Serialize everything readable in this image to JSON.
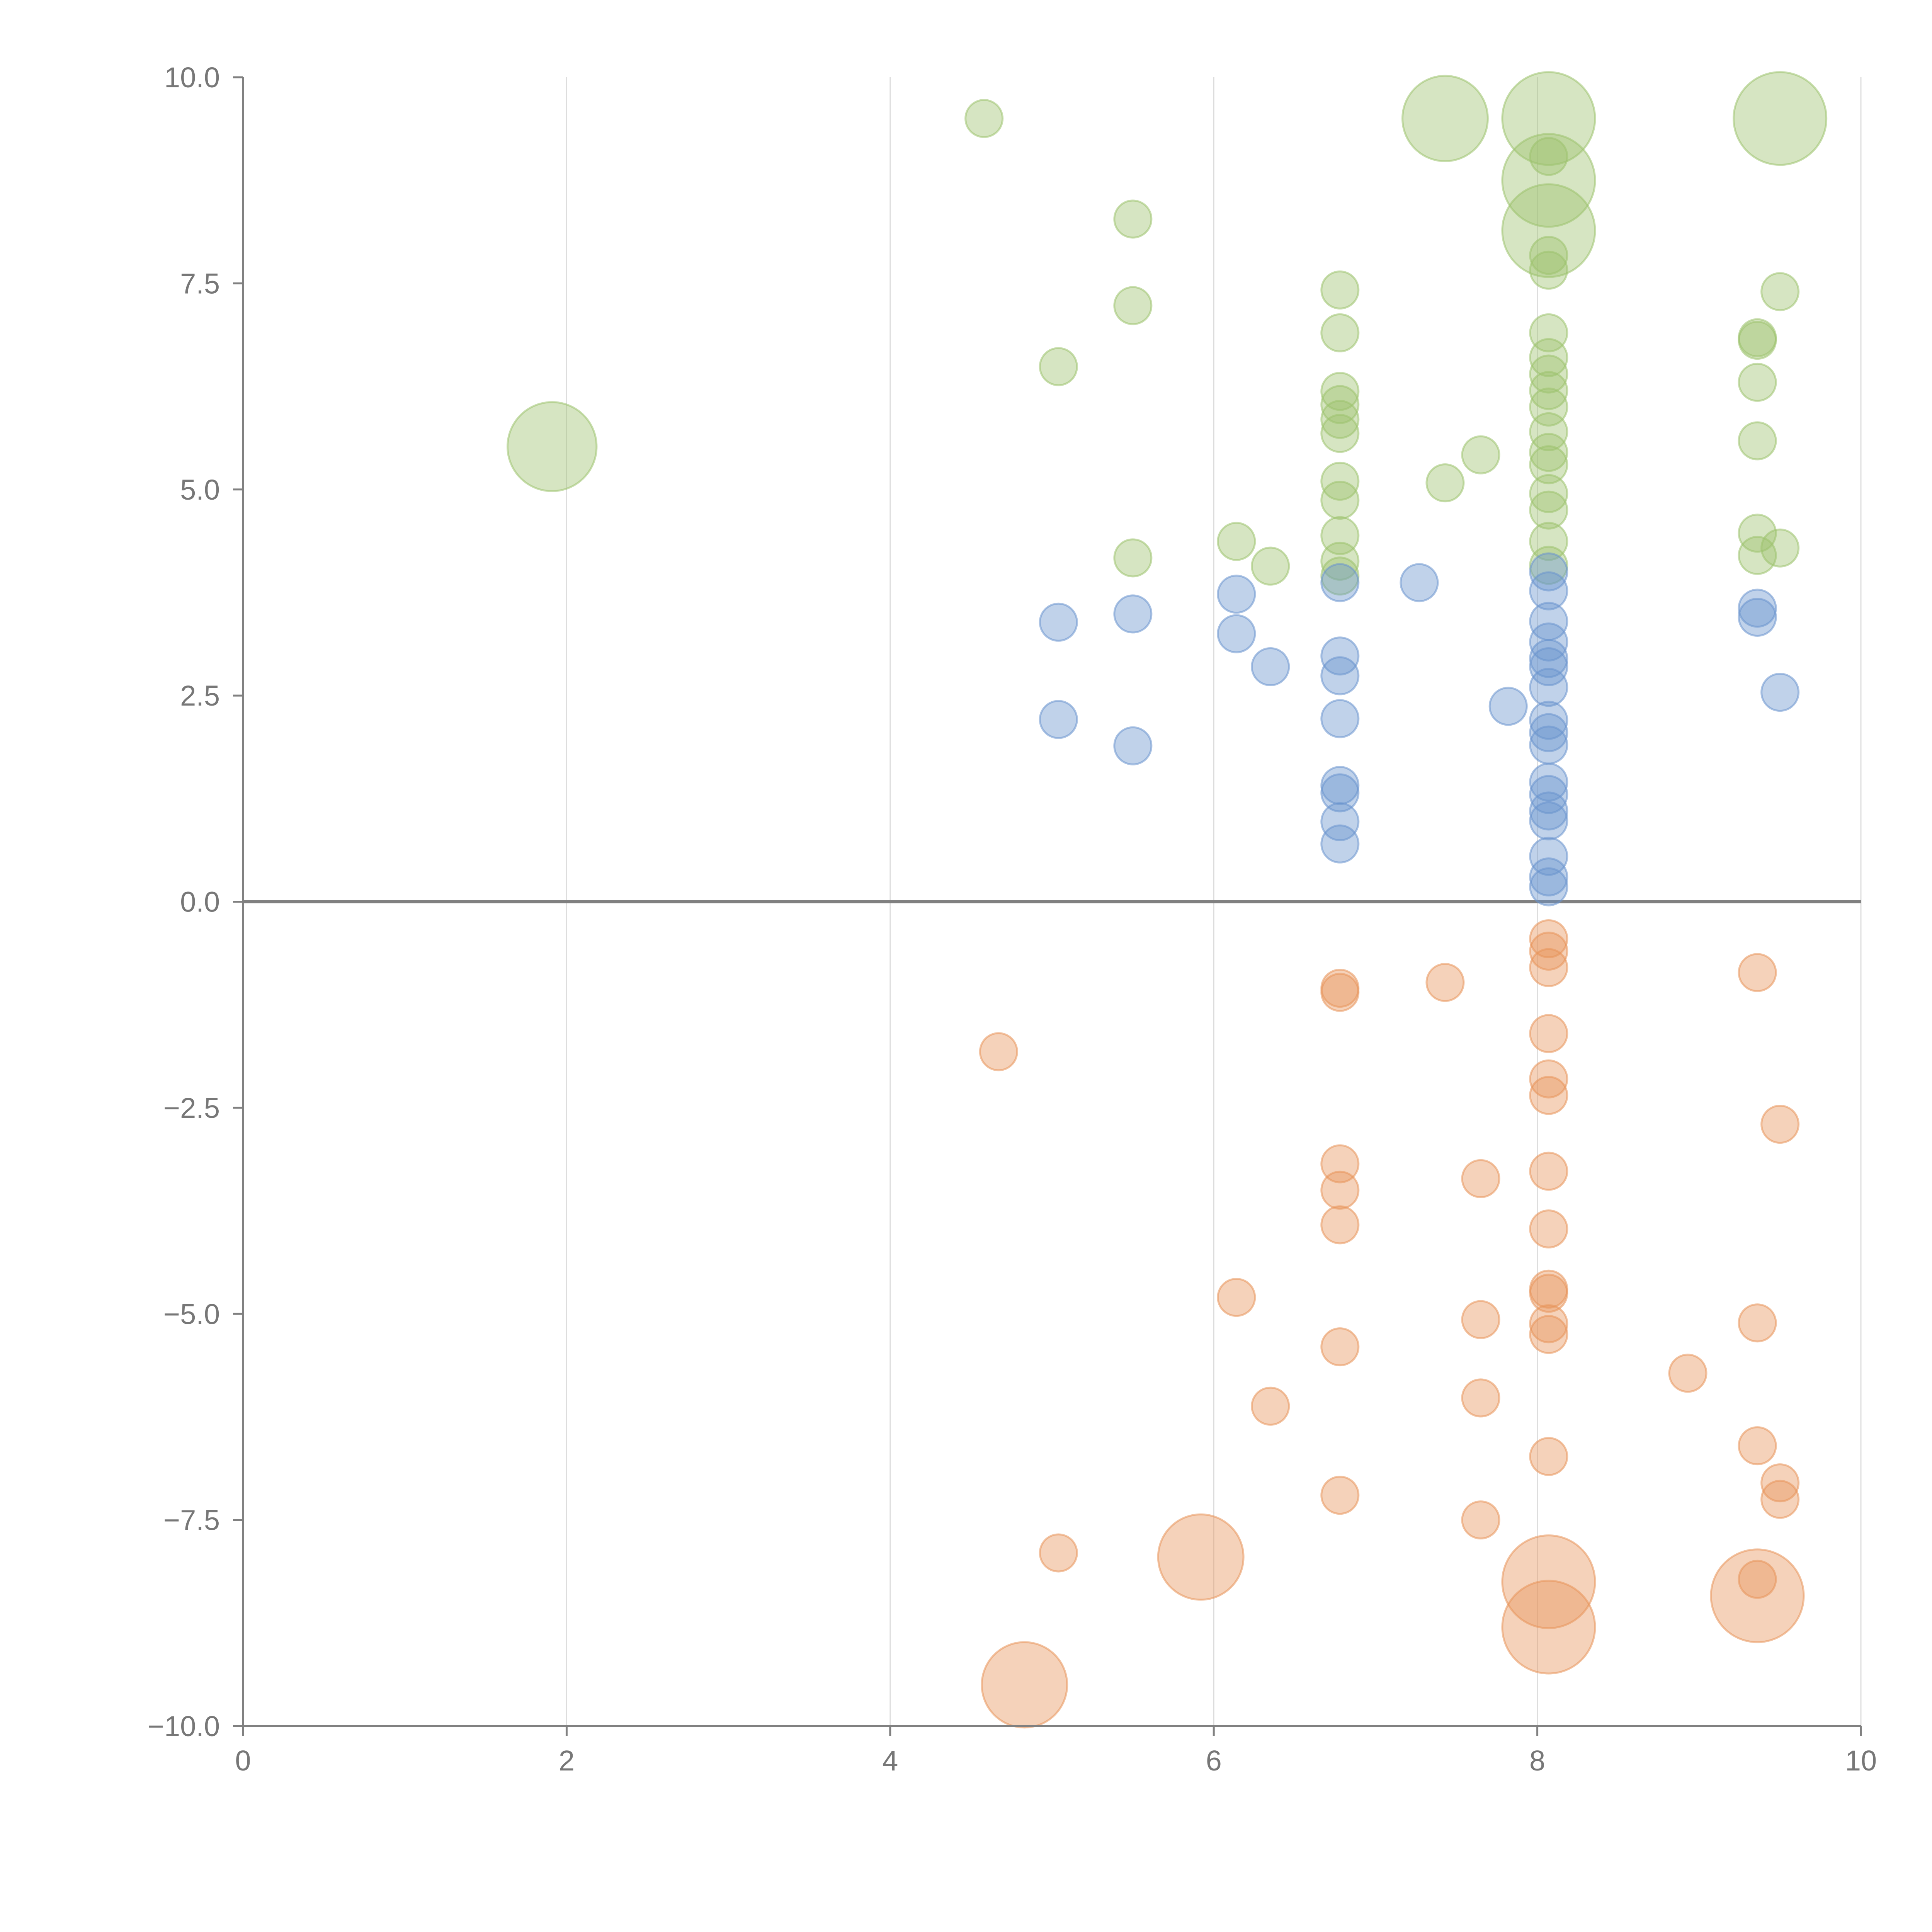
{
  "chart_data": {
    "type": "scatter",
    "title": "",
    "xlabel": "",
    "ylabel": "",
    "xlim": [
      0,
      10
    ],
    "ylim": [
      -10,
      10
    ],
    "grid": "vertical",
    "legend": "none",
    "x_ticks": [
      "0",
      "2",
      "4",
      "6",
      "8",
      "10"
    ],
    "x_tick_values": [
      0,
      2,
      4,
      6,
      8,
      10
    ],
    "y_ticks": [
      "10.0",
      "7.5",
      "5.0",
      "2.5",
      "0.0",
      "−2.5",
      "−5.0",
      "−7.5",
      "−10.0"
    ],
    "y_tick_values": [
      10,
      7.5,
      5,
      2.5,
      0,
      -2.5,
      -5,
      -7.5,
      -10
    ],
    "colors": {
      "green": "#9dc26d",
      "blue": "#6a94cd",
      "orange": "#e8945a"
    },
    "series": [
      {
        "name": "green",
        "color": "#9dc26d",
        "points": [
          [
            4.58,
            9.5,
            1
          ],
          [
            5.5,
            8.28,
            1
          ],
          [
            5.5,
            7.23,
            1
          ],
          [
            5.04,
            6.49,
            1
          ],
          [
            5.5,
            4.17,
            1
          ],
          [
            1.91,
            5.52,
            2.4
          ],
          [
            6.14,
            4.37,
            1
          ],
          [
            6.35,
            4.07,
            1
          ],
          [
            6.78,
            7.42,
            1
          ],
          [
            6.78,
            6.9,
            1
          ],
          [
            6.78,
            6.19,
            1
          ],
          [
            6.78,
            6.03,
            1
          ],
          [
            6.78,
            5.85,
            1
          ],
          [
            6.78,
            5.68,
            1
          ],
          [
            6.78,
            5.1,
            1
          ],
          [
            6.78,
            4.87,
            1
          ],
          [
            6.78,
            4.44,
            1
          ],
          [
            6.78,
            4.13,
            1
          ],
          [
            6.78,
            3.95,
            1
          ],
          [
            7.43,
            9.5,
            2.3
          ],
          [
            7.43,
            5.08,
            1
          ],
          [
            7.65,
            5.42,
            1
          ],
          [
            8.07,
            9.5,
            2.5
          ],
          [
            8.07,
            9.04,
            1
          ],
          [
            8.07,
            8.75,
            2.5
          ],
          [
            8.07,
            8.14,
            2.5
          ],
          [
            8.07,
            7.84,
            1
          ],
          [
            8.07,
            7.66,
            1
          ],
          [
            8.07,
            6.9,
            1
          ],
          [
            8.07,
            6.6,
            1
          ],
          [
            8.07,
            6.4,
            1
          ],
          [
            8.07,
            6.2,
            1
          ],
          [
            8.07,
            6.0,
            1
          ],
          [
            8.07,
            5.7,
            1
          ],
          [
            8.07,
            5.45,
            1
          ],
          [
            8.07,
            5.3,
            1
          ],
          [
            8.07,
            4.95,
            1
          ],
          [
            8.07,
            4.75,
            1
          ],
          [
            8.07,
            4.37,
            1
          ],
          [
            8.07,
            4.08,
            1
          ],
          [
            9.36,
            6.84,
            1
          ],
          [
            9.36,
            6.81,
            1
          ],
          [
            9.36,
            6.3,
            1
          ],
          [
            9.36,
            5.59,
            1
          ],
          [
            9.36,
            4.47,
            1
          ],
          [
            9.36,
            4.2,
            1
          ],
          [
            9.5,
            9.5,
            2.5
          ],
          [
            9.5,
            7.4,
            1
          ],
          [
            9.5,
            4.29,
            1
          ]
        ]
      },
      {
        "name": "blue",
        "color": "#6a94cd",
        "points": [
          [
            5.04,
            3.39,
            1
          ],
          [
            5.04,
            2.21,
            1
          ],
          [
            5.5,
            3.49,
            1
          ],
          [
            5.5,
            1.89,
            1
          ],
          [
            6.14,
            3.73,
            1
          ],
          [
            6.14,
            3.25,
            1
          ],
          [
            6.35,
            2.85,
            1
          ],
          [
            6.78,
            3.87,
            1
          ],
          [
            6.78,
            2.98,
            1
          ],
          [
            6.78,
            2.74,
            1
          ],
          [
            6.78,
            2.22,
            1
          ],
          [
            6.78,
            1.41,
            1
          ],
          [
            6.78,
            1.32,
            1
          ],
          [
            6.78,
            0.97,
            1
          ],
          [
            6.78,
            0.7,
            1
          ],
          [
            7.27,
            3.87,
            1
          ],
          [
            7.82,
            2.37,
            1
          ],
          [
            8.07,
            4.0,
            1
          ],
          [
            8.07,
            3.77,
            1
          ],
          [
            8.07,
            3.4,
            1
          ],
          [
            8.07,
            3.15,
            1
          ],
          [
            8.07,
            2.95,
            1
          ],
          [
            8.07,
            2.85,
            1
          ],
          [
            8.07,
            2.6,
            1
          ],
          [
            8.07,
            2.2,
            1
          ],
          [
            8.07,
            2.05,
            1
          ],
          [
            8.07,
            1.9,
            1
          ],
          [
            8.07,
            1.45,
            1
          ],
          [
            8.07,
            1.3,
            1
          ],
          [
            8.07,
            1.1,
            1
          ],
          [
            8.07,
            0.98,
            1
          ],
          [
            8.07,
            0.55,
            1
          ],
          [
            8.07,
            0.3,
            1
          ],
          [
            8.07,
            0.18,
            1
          ],
          [
            9.36,
            3.56,
            1
          ],
          [
            9.36,
            3.45,
            1
          ],
          [
            9.5,
            2.54,
            1
          ]
        ]
      },
      {
        "name": "orange",
        "color": "#e8945a",
        "points": [
          [
            4.67,
            -1.82,
            1
          ],
          [
            4.83,
            -9.5,
            2.3
          ],
          [
            5.04,
            -7.9,
            1
          ],
          [
            5.92,
            -7.95,
            2.3
          ],
          [
            6.14,
            -4.8,
            1
          ],
          [
            6.35,
            -6.12,
            1
          ],
          [
            6.78,
            -1.05,
            1
          ],
          [
            6.78,
            -1.1,
            1
          ],
          [
            6.78,
            -3.18,
            1
          ],
          [
            6.78,
            -3.5,
            1
          ],
          [
            6.78,
            -3.92,
            1
          ],
          [
            6.78,
            -5.4,
            1
          ],
          [
            6.78,
            -7.2,
            1
          ],
          [
            7.43,
            -0.98,
            1
          ],
          [
            7.65,
            -3.36,
            1
          ],
          [
            7.65,
            -5.07,
            1
          ],
          [
            7.65,
            -6.02,
            1
          ],
          [
            7.65,
            -7.5,
            1
          ],
          [
            8.07,
            -0.45,
            1
          ],
          [
            8.07,
            -0.6,
            1
          ],
          [
            8.07,
            -0.8,
            1
          ],
          [
            8.07,
            -1.6,
            1
          ],
          [
            8.07,
            -2.15,
            1
          ],
          [
            8.07,
            -2.35,
            1
          ],
          [
            8.07,
            -3.27,
            1
          ],
          [
            8.07,
            -3.97,
            1
          ],
          [
            8.07,
            -4.7,
            1
          ],
          [
            8.07,
            -4.75,
            1
          ],
          [
            8.07,
            -5.12,
            1
          ],
          [
            8.07,
            -5.25,
            1
          ],
          [
            8.07,
            -6.73,
            1
          ],
          [
            8.07,
            -8.25,
            2.5
          ],
          [
            8.07,
            -8.8,
            2.5
          ],
          [
            8.93,
            -5.72,
            1
          ],
          [
            9.36,
            -0.86,
            1
          ],
          [
            9.36,
            -5.11,
            1
          ],
          [
            9.36,
            -6.6,
            1
          ],
          [
            9.36,
            -8.22,
            1
          ],
          [
            9.36,
            -8.42,
            2.5
          ],
          [
            9.5,
            -2.7,
            1
          ],
          [
            9.5,
            -7.05,
            1
          ],
          [
            9.5,
            -7.25,
            1
          ]
        ]
      }
    ]
  }
}
